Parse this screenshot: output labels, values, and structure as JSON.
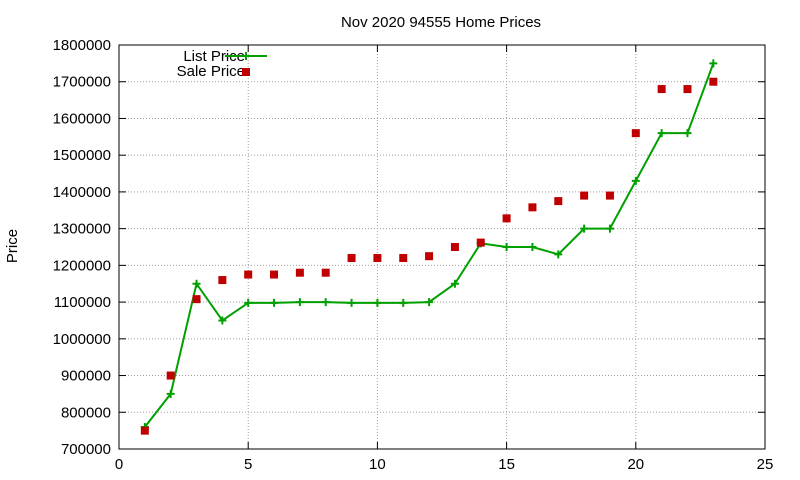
{
  "chart_data": {
    "type": "line",
    "title": "Nov 2020 94555 Home Prices",
    "xlabel": "",
    "ylabel": "Price",
    "xlim": [
      0,
      25
    ],
    "ylim": [
      700000,
      1800000
    ],
    "xticks": [
      0,
      5,
      10,
      15,
      20,
      25
    ],
    "yticks": [
      700000,
      800000,
      900000,
      1000000,
      1100000,
      1200000,
      1300000,
      1400000,
      1500000,
      1600000,
      1700000,
      1800000
    ],
    "grid": true,
    "legend_position": "top-left",
    "series": [
      {
        "name": "List Price",
        "style": "line-with-plus-markers",
        "color": "#00a000",
        "x": [
          1,
          2,
          3,
          4,
          5,
          6,
          7,
          8,
          9,
          10,
          11,
          12,
          13,
          14,
          15,
          16,
          17,
          18,
          19,
          20,
          21,
          22,
          23
        ],
        "y": [
          760000,
          850000,
          1150000,
          1050000,
          1098000,
          1098000,
          1100000,
          1100000,
          1098000,
          1098000,
          1098000,
          1100000,
          1150000,
          1260000,
          1250000,
          1250000,
          1230000,
          1300000,
          1300000,
          1430000,
          1560000,
          1560000,
          1750000
        ]
      },
      {
        "name": "Sale Price",
        "style": "square-markers",
        "color": "#c00000",
        "x": [
          1,
          2,
          3,
          4,
          5,
          6,
          7,
          8,
          9,
          10,
          11,
          12,
          13,
          14,
          15,
          16,
          17,
          18,
          19,
          20,
          21,
          22,
          23
        ],
        "y": [
          750000,
          900000,
          1108000,
          1160000,
          1175000,
          1175000,
          1180000,
          1180000,
          1220000,
          1220000,
          1220000,
          1225000,
          1250000,
          1262000,
          1328000,
          1358000,
          1375000,
          1390000,
          1390000,
          1560000,
          1680000,
          1680000,
          1700000
        ]
      }
    ]
  }
}
